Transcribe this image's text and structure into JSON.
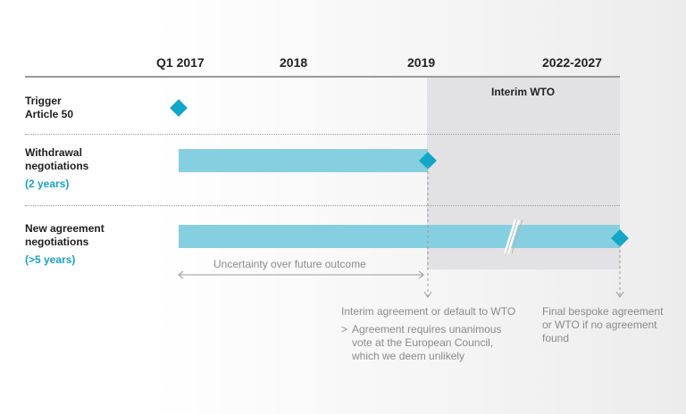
{
  "timeline": {
    "headers": [
      "Q1 2017",
      "2018",
      "2019",
      "2022-2027"
    ]
  },
  "interim_zone": {
    "label": "Interim WTO"
  },
  "rows": {
    "trigger": {
      "line1": "Trigger",
      "line2": "Article 50"
    },
    "withdrawal": {
      "line1": "Withdrawal",
      "line2": "negotiations",
      "duration": "(2 years)"
    },
    "new_agreement": {
      "line1": "New agreement",
      "line2": "negotiations",
      "duration": "(>5 years)"
    }
  },
  "uncertainty": {
    "label": "Uncertainty over future outcome"
  },
  "notes": {
    "interim": {
      "title": "Interim agreement or default to WTO",
      "bullet_marker": ">",
      "bullet_lines": [
        "Agreement requires unanimous",
        "vote at the European Council,",
        "which we deem unlikely"
      ]
    },
    "final": {
      "lines": [
        "Final bespoke agreement",
        "or WTO if no agreement",
        "found"
      ]
    }
  },
  "colors": {
    "bar": "#86cfe0",
    "diamond": "#12a6c7",
    "accent_text": "#1aa0c0",
    "interim_zone": "#e2e2e4"
  }
}
